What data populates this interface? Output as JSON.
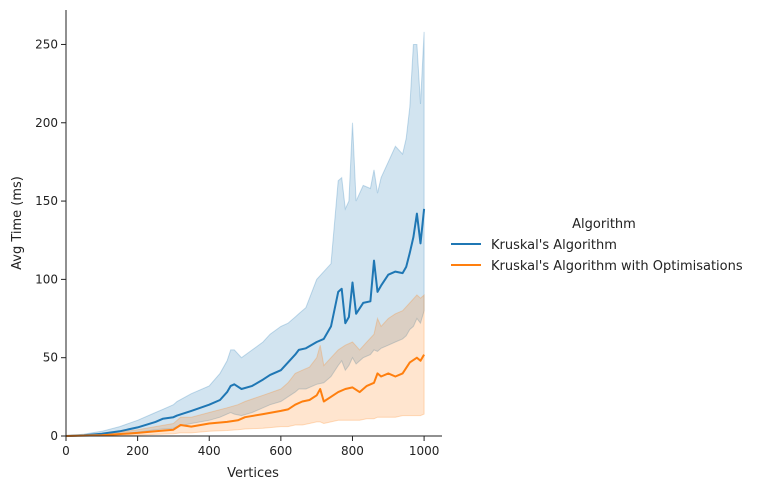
{
  "chart_data": {
    "type": "line",
    "xlabel": "Vertices",
    "ylabel": "Avg Time (ms)",
    "xlim": [
      0,
      1050
    ],
    "ylim": [
      0,
      272
    ],
    "xticks": [
      0,
      200,
      400,
      600,
      800,
      1000
    ],
    "yticks": [
      0,
      50,
      100,
      150,
      200,
      250
    ],
    "grid": false,
    "legend": {
      "title": "Algorithm",
      "placement": "right"
    },
    "series": [
      {
        "name": "Kruskal's Algorithm",
        "color": "#1f77b4",
        "x": [
          0,
          50,
          100,
          150,
          200,
          250,
          270,
          300,
          310,
          350,
          400,
          430,
          450,
          460,
          470,
          490,
          520,
          550,
          570,
          600,
          620,
          640,
          650,
          670,
          700,
          720,
          740,
          760,
          770,
          780,
          790,
          800,
          810,
          830,
          850,
          860,
          870,
          880,
          900,
          920,
          940,
          950,
          960,
          970,
          980,
          990,
          1000
        ],
        "y": [
          0,
          0.5,
          1.5,
          3,
          5.5,
          9,
          11,
          12,
          13,
          16,
          20,
          23,
          28,
          32,
          33,
          30,
          32,
          36,
          39,
          42,
          47,
          52,
          55,
          56,
          60,
          62,
          70,
          92,
          94,
          72,
          76,
          98,
          78,
          85,
          86,
          112,
          92,
          96,
          103,
          105,
          104,
          108,
          117,
          127,
          142,
          123,
          145
        ],
        "lower": [
          0,
          0.2,
          0.6,
          1.2,
          2.5,
          4,
          4.5,
          5,
          6,
          8,
          10,
          12,
          14,
          15,
          14,
          13,
          15,
          18,
          20,
          22,
          25,
          28,
          30,
          30,
          33,
          34,
          38,
          45,
          48,
          42,
          45,
          50,
          46,
          50,
          52,
          55,
          54,
          56,
          58,
          60,
          62,
          64,
          68,
          70,
          75,
          72,
          80
        ],
        "upper": [
          0,
          1.2,
          3,
          6,
          10,
          15,
          17,
          20,
          22,
          27,
          32,
          40,
          48,
          55,
          55,
          50,
          55,
          60,
          65,
          70,
          72,
          76,
          78,
          82,
          100,
          105,
          110,
          163,
          165,
          145,
          150,
          200,
          150,
          160,
          158,
          170,
          155,
          165,
          175,
          185,
          180,
          190,
          210,
          250,
          250,
          212,
          258
        ]
      },
      {
        "name": "Kruskal's Algorithm with Optimisations",
        "color": "#ff7f0e",
        "x": [
          0,
          100,
          200,
          250,
          300,
          320,
          350,
          400,
          450,
          480,
          500,
          550,
          600,
          620,
          640,
          660,
          680,
          700,
          710,
          720,
          740,
          760,
          780,
          800,
          820,
          840,
          860,
          870,
          880,
          900,
          920,
          940,
          960,
          980,
          990,
          1000
        ],
        "y": [
          0,
          0.5,
          2,
          3,
          4,
          7,
          6,
          8,
          9,
          10,
          12,
          14,
          16,
          17,
          20,
          22,
          23,
          26,
          30,
          22,
          25,
          28,
          30,
          31,
          28,
          32,
          34,
          40,
          38,
          40,
          38,
          40,
          47,
          50,
          48,
          52
        ],
        "lower": [
          0,
          0.2,
          0.6,
          1,
          1.5,
          2,
          2,
          3,
          3.5,
          4,
          4.5,
          5,
          6,
          6,
          7,
          7,
          8,
          9,
          9,
          8,
          9,
          10,
          10,
          10,
          10,
          11,
          11,
          12,
          12,
          12,
          12,
          13,
          13,
          13,
          13,
          14
        ],
        "upper": [
          0,
          1,
          4,
          6,
          8,
          12,
          12,
          15,
          18,
          20,
          22,
          26,
          30,
          34,
          40,
          42,
          44,
          50,
          58,
          45,
          50,
          55,
          58,
          60,
          55,
          60,
          65,
          75,
          70,
          75,
          78,
          80,
          85,
          90,
          88,
          90
        ]
      }
    ]
  }
}
